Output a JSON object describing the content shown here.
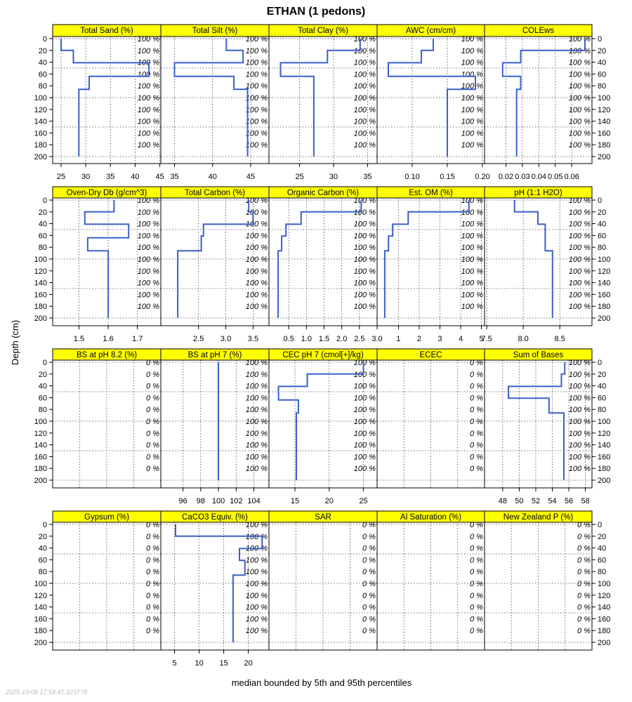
{
  "chart_data": {
    "type": "line",
    "title": "ETHAN (1 pedons)",
    "ylabel": "Depth (cm)",
    "xlabel": "median bounded by 5th and 95th percentiles",
    "timestamp": "2025-10-08 17:54:47.823778",
    "depth_ticks": [
      0,
      20,
      40,
      60,
      80,
      100,
      120,
      140,
      160,
      180,
      200
    ],
    "depth_range": [
      0,
      200
    ],
    "pct_depths": [
      0,
      20,
      40,
      60,
      80,
      100,
      120,
      140,
      160,
      180
    ],
    "grid": true,
    "line_color": "#3a5fcd",
    "strip_color": "#ffff00",
    "panels": [
      {
        "name": "Total Sand (%)",
        "pct": "100 %",
        "xlim": [
          23.3,
          45.2
        ],
        "ticks": [
          25,
          30,
          35,
          40,
          45
        ],
        "tick_labels": [
          "25",
          "30",
          "35",
          "40",
          "45"
        ],
        "profile": [
          [
            0,
            25
          ],
          [
            20,
            25
          ],
          [
            20,
            27.5
          ],
          [
            41,
            27.5
          ],
          [
            41,
            42.8
          ],
          [
            64,
            42.8
          ],
          [
            64,
            30.7
          ],
          [
            86,
            30.7
          ],
          [
            86,
            28.6
          ],
          [
            200,
            28.6
          ]
        ]
      },
      {
        "name": "Total Silt (%)",
        "pct": "100 %",
        "xlim": [
          33.2,
          47.4
        ],
        "ticks": [
          35,
          40,
          45
        ],
        "tick_labels": [
          "35",
          "40",
          "45"
        ],
        "profile": [
          [
            0,
            41.8
          ],
          [
            20,
            41.8
          ],
          [
            20,
            44
          ],
          [
            41,
            44
          ],
          [
            41,
            35
          ],
          [
            64,
            35
          ],
          [
            64,
            42.8
          ],
          [
            86,
            42.8
          ],
          [
            86,
            44.6
          ],
          [
            200,
            44.6
          ]
        ]
      },
      {
        "name": "Total Clay (%)",
        "pct": "100 %",
        "xlim": [
          20.5,
          36.4
        ],
        "ticks": [
          25,
          30,
          35
        ],
        "tick_labels": [
          "25",
          "30",
          "35"
        ],
        "profile": [
          [
            0,
            33.9
          ],
          [
            20,
            33.9
          ],
          [
            20,
            29.1
          ],
          [
            41,
            29.1
          ],
          [
            41,
            22.2
          ],
          [
            64,
            22.2
          ],
          [
            64,
            27.1
          ],
          [
            86,
            27.1
          ],
          [
            86,
            27.1
          ],
          [
            200,
            27.1
          ]
        ]
      },
      {
        "name": "AWC (cm/cm)",
        "pct": "100 %",
        "xlim": [
          0.05,
          0.203
        ],
        "ticks": [
          0.1,
          0.15,
          0.2
        ],
        "tick_labels": [
          "0.10",
          "0.15",
          "0.20"
        ],
        "profile": [
          [
            0,
            0.13
          ],
          [
            20,
            0.13
          ],
          [
            20,
            0.113
          ],
          [
            41,
            0.113
          ],
          [
            41,
            0.066
          ],
          [
            64,
            0.066
          ],
          [
            64,
            0.19
          ],
          [
            86,
            0.19
          ],
          [
            86,
            0.15
          ],
          [
            200,
            0.15
          ]
        ]
      },
      {
        "name": "COLEws",
        "pct": "100 %",
        "xlim": [
          0.007,
          0.0723
        ],
        "ticks": [
          0.02,
          0.03,
          0.04,
          0.05,
          0.06
        ],
        "tick_labels": [
          "0.02",
          "0.03",
          "0.04",
          "0.05",
          "0.06"
        ],
        "profile": [
          [
            0,
            0.068
          ],
          [
            20,
            0.068
          ],
          [
            20,
            0.029
          ],
          [
            41,
            0.029
          ],
          [
            41,
            0.018
          ],
          [
            64,
            0.018
          ],
          [
            64,
            0.029
          ],
          [
            86,
            0.029
          ],
          [
            86,
            0.0265
          ],
          [
            200,
            0.0265
          ]
        ]
      },
      {
        "name": "Oven-Dry Db (g/cm^3)",
        "pct": "100 %",
        "xlim": [
          1.41,
          1.78
        ],
        "ticks": [
          1.5,
          1.6,
          1.7
        ],
        "tick_labels": [
          "1.5",
          "1.6",
          "1.7"
        ],
        "profile": [
          [
            0,
            1.62
          ],
          [
            20,
            1.62
          ],
          [
            20,
            1.52
          ],
          [
            41,
            1.52
          ],
          [
            41,
            1.67
          ],
          [
            64,
            1.67
          ],
          [
            64,
            1.53
          ],
          [
            86,
            1.53
          ],
          [
            86,
            1.6
          ],
          [
            200,
            1.6
          ]
        ]
      },
      {
        "name": "Total Carbon (%)",
        "pct": "100 %",
        "xlim": [
          1.81,
          3.79
        ],
        "ticks": [
          2.5,
          3.0,
          3.5
        ],
        "tick_labels": [
          "2.5",
          "3.0",
          "3.5"
        ],
        "profile": [
          [
            0,
            3.42
          ],
          [
            20,
            3.42
          ],
          [
            20,
            3.5
          ],
          [
            41,
            3.5
          ],
          [
            41,
            2.59
          ],
          [
            61,
            2.59
          ],
          [
            61,
            2.55
          ],
          [
            86,
            2.55
          ],
          [
            86,
            2.12
          ],
          [
            200,
            2.12
          ]
        ]
      },
      {
        "name": "Organic Carbon (%)",
        "pct": "100 %",
        "xlim": [
          -0.06,
          3.0
        ],
        "ticks": [
          0.5,
          1.0,
          1.5,
          2.0,
          2.5,
          3.0
        ],
        "tick_labels": [
          "0.5",
          "1.0",
          "1.5",
          "2.0",
          "2.5",
          "3.0"
        ],
        "profile": [
          [
            0,
            2.55
          ],
          [
            20,
            2.55
          ],
          [
            20,
            0.85
          ],
          [
            41,
            0.85
          ],
          [
            41,
            0.42
          ],
          [
            61,
            0.42
          ],
          [
            61,
            0.3
          ],
          [
            86,
            0.3
          ],
          [
            86,
            0.2
          ],
          [
            200,
            0.2
          ]
        ]
      },
      {
        "name": "Est. OM (%)",
        "pct": "100 %",
        "xlim": [
          -0.03,
          5.15
        ],
        "ticks": [
          1,
          2,
          3,
          4,
          5
        ],
        "tick_labels": [
          "1",
          "2",
          "3",
          "4",
          "5"
        ],
        "profile": [
          [
            0,
            4.4
          ],
          [
            20,
            4.4
          ],
          [
            20,
            1.47
          ],
          [
            41,
            1.47
          ],
          [
            41,
            0.72
          ],
          [
            61,
            0.72
          ],
          [
            61,
            0.52
          ],
          [
            86,
            0.52
          ],
          [
            86,
            0.34
          ],
          [
            200,
            0.34
          ]
        ]
      },
      {
        "name": "pH (1:1 H2O)",
        "pct": "100 %",
        "xlim": [
          7.47,
          8.94
        ],
        "ticks": [
          7.5,
          8.0,
          8.5
        ],
        "tick_labels": [
          "7.5",
          "8.0",
          "8.5"
        ],
        "profile": [
          [
            0,
            7.88
          ],
          [
            20,
            7.88
          ],
          [
            20,
            8.2
          ],
          [
            41,
            8.2
          ],
          [
            41,
            8.3
          ],
          [
            86,
            8.3
          ],
          [
            86,
            8.4
          ],
          [
            200,
            8.4
          ]
        ]
      },
      {
        "name": "BS at pH 8.2 (%)",
        "pct": "0 %",
        "xlim": [
          0,
          1
        ],
        "ticks": [],
        "tick_labels": [],
        "profile": []
      },
      {
        "name": "BS at pH 7 (%)",
        "pct": "100 %",
        "xlim": [
          93.5,
          105.7
        ],
        "ticks": [
          96,
          98,
          100,
          102,
          104
        ],
        "tick_labels": [
          "96",
          "98",
          "100",
          "102",
          "104"
        ],
        "profile": [
          [
            0,
            100
          ],
          [
            200,
            100
          ]
        ]
      },
      {
        "name": "CEC pH 7 (cmol[+]/kg)",
        "pct": "100 %",
        "xlim": [
          11.2,
          27.0
        ],
        "ticks": [
          15,
          20,
          25
        ],
        "tick_labels": [
          "15",
          "20",
          "25"
        ],
        "profile": [
          [
            0,
            25
          ],
          [
            20,
            25
          ],
          [
            20,
            16.8
          ],
          [
            41,
            16.8
          ],
          [
            41,
            12.6
          ],
          [
            64,
            12.6
          ],
          [
            64,
            15.5
          ],
          [
            86,
            15.5
          ],
          [
            86,
            15.2
          ],
          [
            200,
            15.2
          ]
        ]
      },
      {
        "name": "ECEC",
        "pct": "0 %",
        "xlim": [
          0,
          1
        ],
        "ticks": [],
        "tick_labels": [],
        "profile": []
      },
      {
        "name": "Sum of Bases",
        "pct": "100 %",
        "xlim": [
          45.8,
          58.8
        ],
        "ticks": [
          48,
          50,
          52,
          54,
          56,
          58
        ],
        "tick_labels": [
          "48",
          "50",
          "52",
          "54",
          "56",
          "58"
        ],
        "profile": [
          [
            0,
            55.5
          ],
          [
            20,
            55.5
          ],
          [
            20,
            55.1
          ],
          [
            41,
            55.1
          ],
          [
            41,
            48.7
          ],
          [
            61,
            48.7
          ],
          [
            61,
            53.6
          ],
          [
            86,
            53.6
          ],
          [
            86,
            55.4
          ],
          [
            200,
            55.4
          ]
        ]
      },
      {
        "name": "Gypsum (%)",
        "pct": "0 %",
        "xlim": [
          0,
          1
        ],
        "ticks": [],
        "tick_labels": [],
        "profile": []
      },
      {
        "name": "CaCO3 Equiv. (%)",
        "pct": "100 %",
        "xlim": [
          2.2,
          24.2
        ],
        "ticks": [
          5,
          10,
          15,
          20
        ],
        "tick_labels": [
          "5",
          "10",
          "15",
          "20"
        ],
        "profile": [
          [
            0,
            5.2
          ],
          [
            20,
            5.2
          ],
          [
            20,
            22.8
          ],
          [
            41,
            22.8
          ],
          [
            41,
            18.2
          ],
          [
            61,
            18.2
          ],
          [
            61,
            19.3
          ],
          [
            86,
            19.3
          ],
          [
            86,
            16.9
          ],
          [
            200,
            16.9
          ]
        ]
      },
      {
        "name": "SAR",
        "pct": "0 %",
        "xlim": [
          0,
          1
        ],
        "ticks": [],
        "tick_labels": [],
        "profile": []
      },
      {
        "name": "Al Saturation (%)",
        "pct": "0 %",
        "xlim": [
          0,
          1
        ],
        "ticks": [],
        "tick_labels": [],
        "profile": []
      },
      {
        "name": "New Zealand P (%)",
        "pct": "0 %",
        "xlim": [
          0,
          1
        ],
        "ticks": [],
        "tick_labels": [],
        "profile": []
      }
    ]
  }
}
